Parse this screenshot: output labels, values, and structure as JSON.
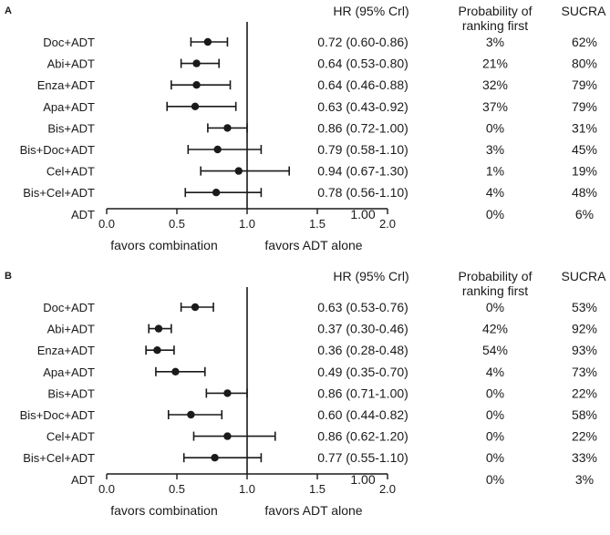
{
  "chart_data": [
    {
      "type": "forest",
      "panel_label": "A",
      "column_headers": {
        "hr": "HR (95% Crl)",
        "prob": "Probability of\nranking first",
        "sucra": "SUCRA"
      },
      "rows": [
        {
          "label": "Doc+ADT",
          "hr": 0.72,
          "lo": 0.6,
          "hi": 0.86,
          "hr_text": "0.72 (0.60-0.86)",
          "prob": "3%",
          "sucra": "62%"
        },
        {
          "label": "Abi+ADT",
          "hr": 0.64,
          "lo": 0.53,
          "hi": 0.8,
          "hr_text": "0.64 (0.53-0.80)",
          "prob": "21%",
          "sucra": "80%"
        },
        {
          "label": "Enza+ADT",
          "hr": 0.64,
          "lo": 0.46,
          "hi": 0.88,
          "hr_text": "0.64 (0.46-0.88)",
          "prob": "32%",
          "sucra": "79%"
        },
        {
          "label": "Apa+ADT",
          "hr": 0.63,
          "lo": 0.43,
          "hi": 0.92,
          "hr_text": "0.63 (0.43-0.92)",
          "prob": "37%",
          "sucra": "79%"
        },
        {
          "label": "Bis+ADT",
          "hr": 0.86,
          "lo": 0.72,
          "hi": 1.0,
          "hr_text": "0.86 (0.72-1.00)",
          "prob": "0%",
          "sucra": "31%"
        },
        {
          "label": "Bis+Doc+ADT",
          "hr": 0.79,
          "lo": 0.58,
          "hi": 1.1,
          "hr_text": "0.79 (0.58-1.10)",
          "prob": "3%",
          "sucra": "45%"
        },
        {
          "label": "Cel+ADT",
          "hr": 0.94,
          "lo": 0.67,
          "hi": 1.3,
          "hr_text": "0.94 (0.67-1.30)",
          "prob": "1%",
          "sucra": "19%"
        },
        {
          "label": "Bis+Cel+ADT",
          "hr": 0.78,
          "lo": 0.56,
          "hi": 1.1,
          "hr_text": "0.78 (0.56-1.10)",
          "prob": "4%",
          "sucra": "48%"
        },
        {
          "label": "ADT",
          "hr": null,
          "lo": null,
          "hi": null,
          "hr_text": "1.00",
          "prob": "0%",
          "sucra": "6%"
        }
      ],
      "xlim": [
        0.0,
        2.0
      ],
      "x_ticks": [
        "0.0",
        "0.5",
        "1.0",
        "1.5",
        "2.0"
      ],
      "reference_line": 1.0,
      "x_annotations": {
        "left": "favors combination",
        "right": "favors ADT alone"
      }
    },
    {
      "type": "forest",
      "panel_label": "B",
      "column_headers": {
        "hr": "HR (95% Crl)",
        "prob": "Probability of\nranking first",
        "sucra": "SUCRA"
      },
      "rows": [
        {
          "label": "Doc+ADT",
          "hr": 0.63,
          "lo": 0.53,
          "hi": 0.76,
          "hr_text": "0.63 (0.53-0.76)",
          "prob": "0%",
          "sucra": "53%"
        },
        {
          "label": "Abi+ADT",
          "hr": 0.37,
          "lo": 0.3,
          "hi": 0.46,
          "hr_text": "0.37 (0.30-0.46)",
          "prob": "42%",
          "sucra": "92%"
        },
        {
          "label": "Enza+ADT",
          "hr": 0.36,
          "lo": 0.28,
          "hi": 0.48,
          "hr_text": "0.36 (0.28-0.48)",
          "prob": "54%",
          "sucra": "93%"
        },
        {
          "label": "Apa+ADT",
          "hr": 0.49,
          "lo": 0.35,
          "hi": 0.7,
          "hr_text": "0.49 (0.35-0.70)",
          "prob": "4%",
          "sucra": "73%"
        },
        {
          "label": "Bis+ADT",
          "hr": 0.86,
          "lo": 0.71,
          "hi": 1.0,
          "hr_text": "0.86 (0.71-1.00)",
          "prob": "0%",
          "sucra": "22%"
        },
        {
          "label": "Bis+Doc+ADT",
          "hr": 0.6,
          "lo": 0.44,
          "hi": 0.82,
          "hr_text": "0.60 (0.44-0.82)",
          "prob": "0%",
          "sucra": "58%"
        },
        {
          "label": "Cel+ADT",
          "hr": 0.86,
          "lo": 0.62,
          "hi": 1.2,
          "hr_text": "0.86 (0.62-1.20)",
          "prob": "0%",
          "sucra": "22%"
        },
        {
          "label": "Bis+Cel+ADT",
          "hr": 0.77,
          "lo": 0.55,
          "hi": 1.1,
          "hr_text": "0.77 (0.55-1.10)",
          "prob": "0%",
          "sucra": "33%"
        },
        {
          "label": "ADT",
          "hr": null,
          "lo": null,
          "hi": null,
          "hr_text": "1.00",
          "prob": "0%",
          "sucra": "3%"
        }
      ],
      "xlim": [
        0.0,
        2.0
      ],
      "x_ticks": [
        "0.0",
        "0.5",
        "1.0",
        "1.5",
        "2.0"
      ],
      "reference_line": 1.0,
      "x_annotations": {
        "left": "favors combination",
        "right": "favors ADT alone"
      }
    }
  ],
  "colors": {
    "ink": "#1a1a1a",
    "background": "#ffffff"
  }
}
